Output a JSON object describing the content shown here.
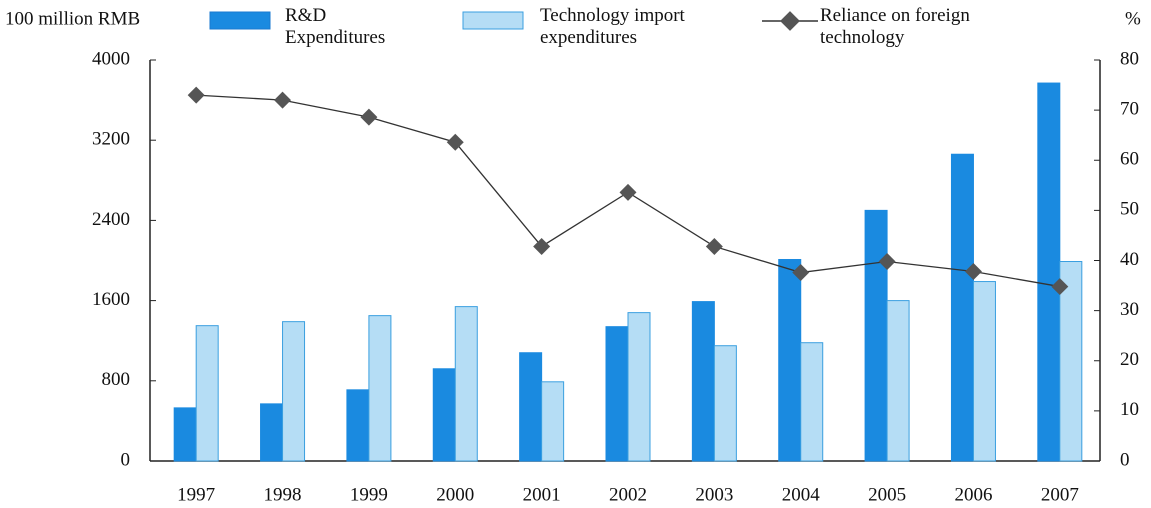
{
  "chart_data": {
    "type": "bar",
    "y_label": "100 million RMB",
    "y2_label": "%",
    "categories": [
      "1997",
      "1998",
      "1999",
      "2000",
      "2001",
      "2002",
      "2003",
      "2004",
      "2005",
      "2006",
      "2007"
    ],
    "series": [
      {
        "name": "R&D Expenditures",
        "type": "bar",
        "color": "#1a8ae0",
        "values": [
          530,
          570,
          710,
          920,
          1080,
          1340,
          1590,
          2010,
          2500,
          3060,
          3770
        ]
      },
      {
        "name": "Technology import expenditures",
        "type": "bar",
        "color": "#b5ddf5",
        "values": [
          1350,
          1390,
          1450,
          1540,
          790,
          1480,
          1150,
          1180,
          1600,
          1790,
          1990
        ]
      },
      {
        "name": "Reliance on foreign technology",
        "type": "line",
        "axis": "y2",
        "color": "#333333",
        "values": [
          73,
          72,
          68.6,
          63.6,
          42.8,
          53.6,
          42.8,
          37.6,
          39.8,
          37.8,
          34.8
        ]
      }
    ],
    "ylim": [
      0,
      4000
    ],
    "yticks": [
      0,
      800,
      1600,
      2400,
      3200,
      4000
    ],
    "y2lim": [
      0,
      80
    ],
    "y2ticks": [
      0,
      10,
      20,
      30,
      40,
      50,
      60,
      70,
      80
    ]
  }
}
